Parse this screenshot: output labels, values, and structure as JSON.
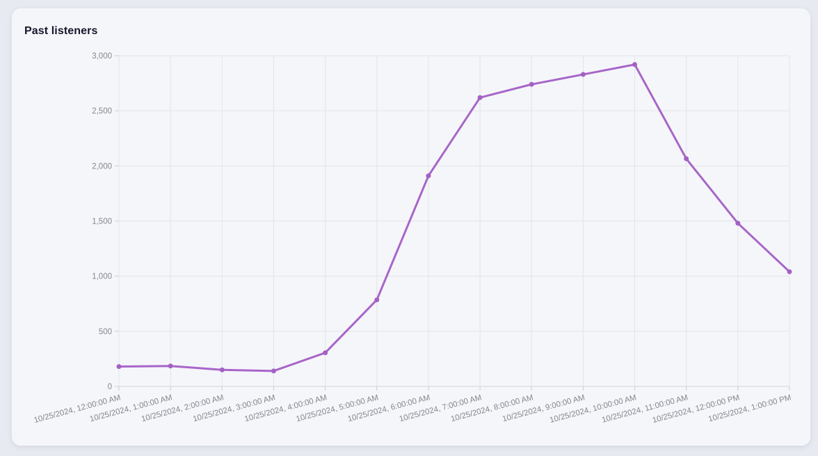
{
  "page": {
    "background_color": "#e8eaf2",
    "card_background_color": "#f5f6fa"
  },
  "card": {
    "title": "Past listeners"
  },
  "chart_data": {
    "type": "line",
    "title": "Past listeners",
    "x_labels": [
      "10/25/2024, 12:00:00 AM",
      "10/25/2024, 1:00:00 AM",
      "10/25/2024, 2:00:00 AM",
      "10/25/2024, 3:00:00 AM",
      "10/25/2024, 4:00:00 AM",
      "10/25/2024, 5:00:00 AM",
      "10/25/2024, 6:00:00 AM",
      "10/25/2024, 7:00:00 AM",
      "10/25/2024, 8:00:00 AM",
      "10/25/2024, 9:00:00 AM",
      "10/25/2024, 10:00:00 AM",
      "10/25/2024, 11:00:00 AM",
      "10/25/2024, 12:00:00 PM",
      "10/25/2024, 1:00:00 PM"
    ],
    "values": [
      180,
      185,
      150,
      140,
      305,
      785,
      1910,
      2620,
      2740,
      2830,
      2920,
      2065,
      1480,
      1040
    ],
    "ylim": [
      0,
      3000
    ],
    "y_ticks": [
      0,
      500,
      1000,
      1500,
      2000,
      2500,
      3000
    ],
    "y_tick_labels": [
      "0",
      "500",
      "1,000",
      "1,500",
      "2,000",
      "2,500",
      "3,000"
    ],
    "xlabel": "",
    "ylabel": "",
    "grid": true,
    "legend_position": "none",
    "x_label_rotation_deg": -15,
    "line_color": "#a865c8",
    "point_color": "#a361c4",
    "point_radius": 3.5
  }
}
